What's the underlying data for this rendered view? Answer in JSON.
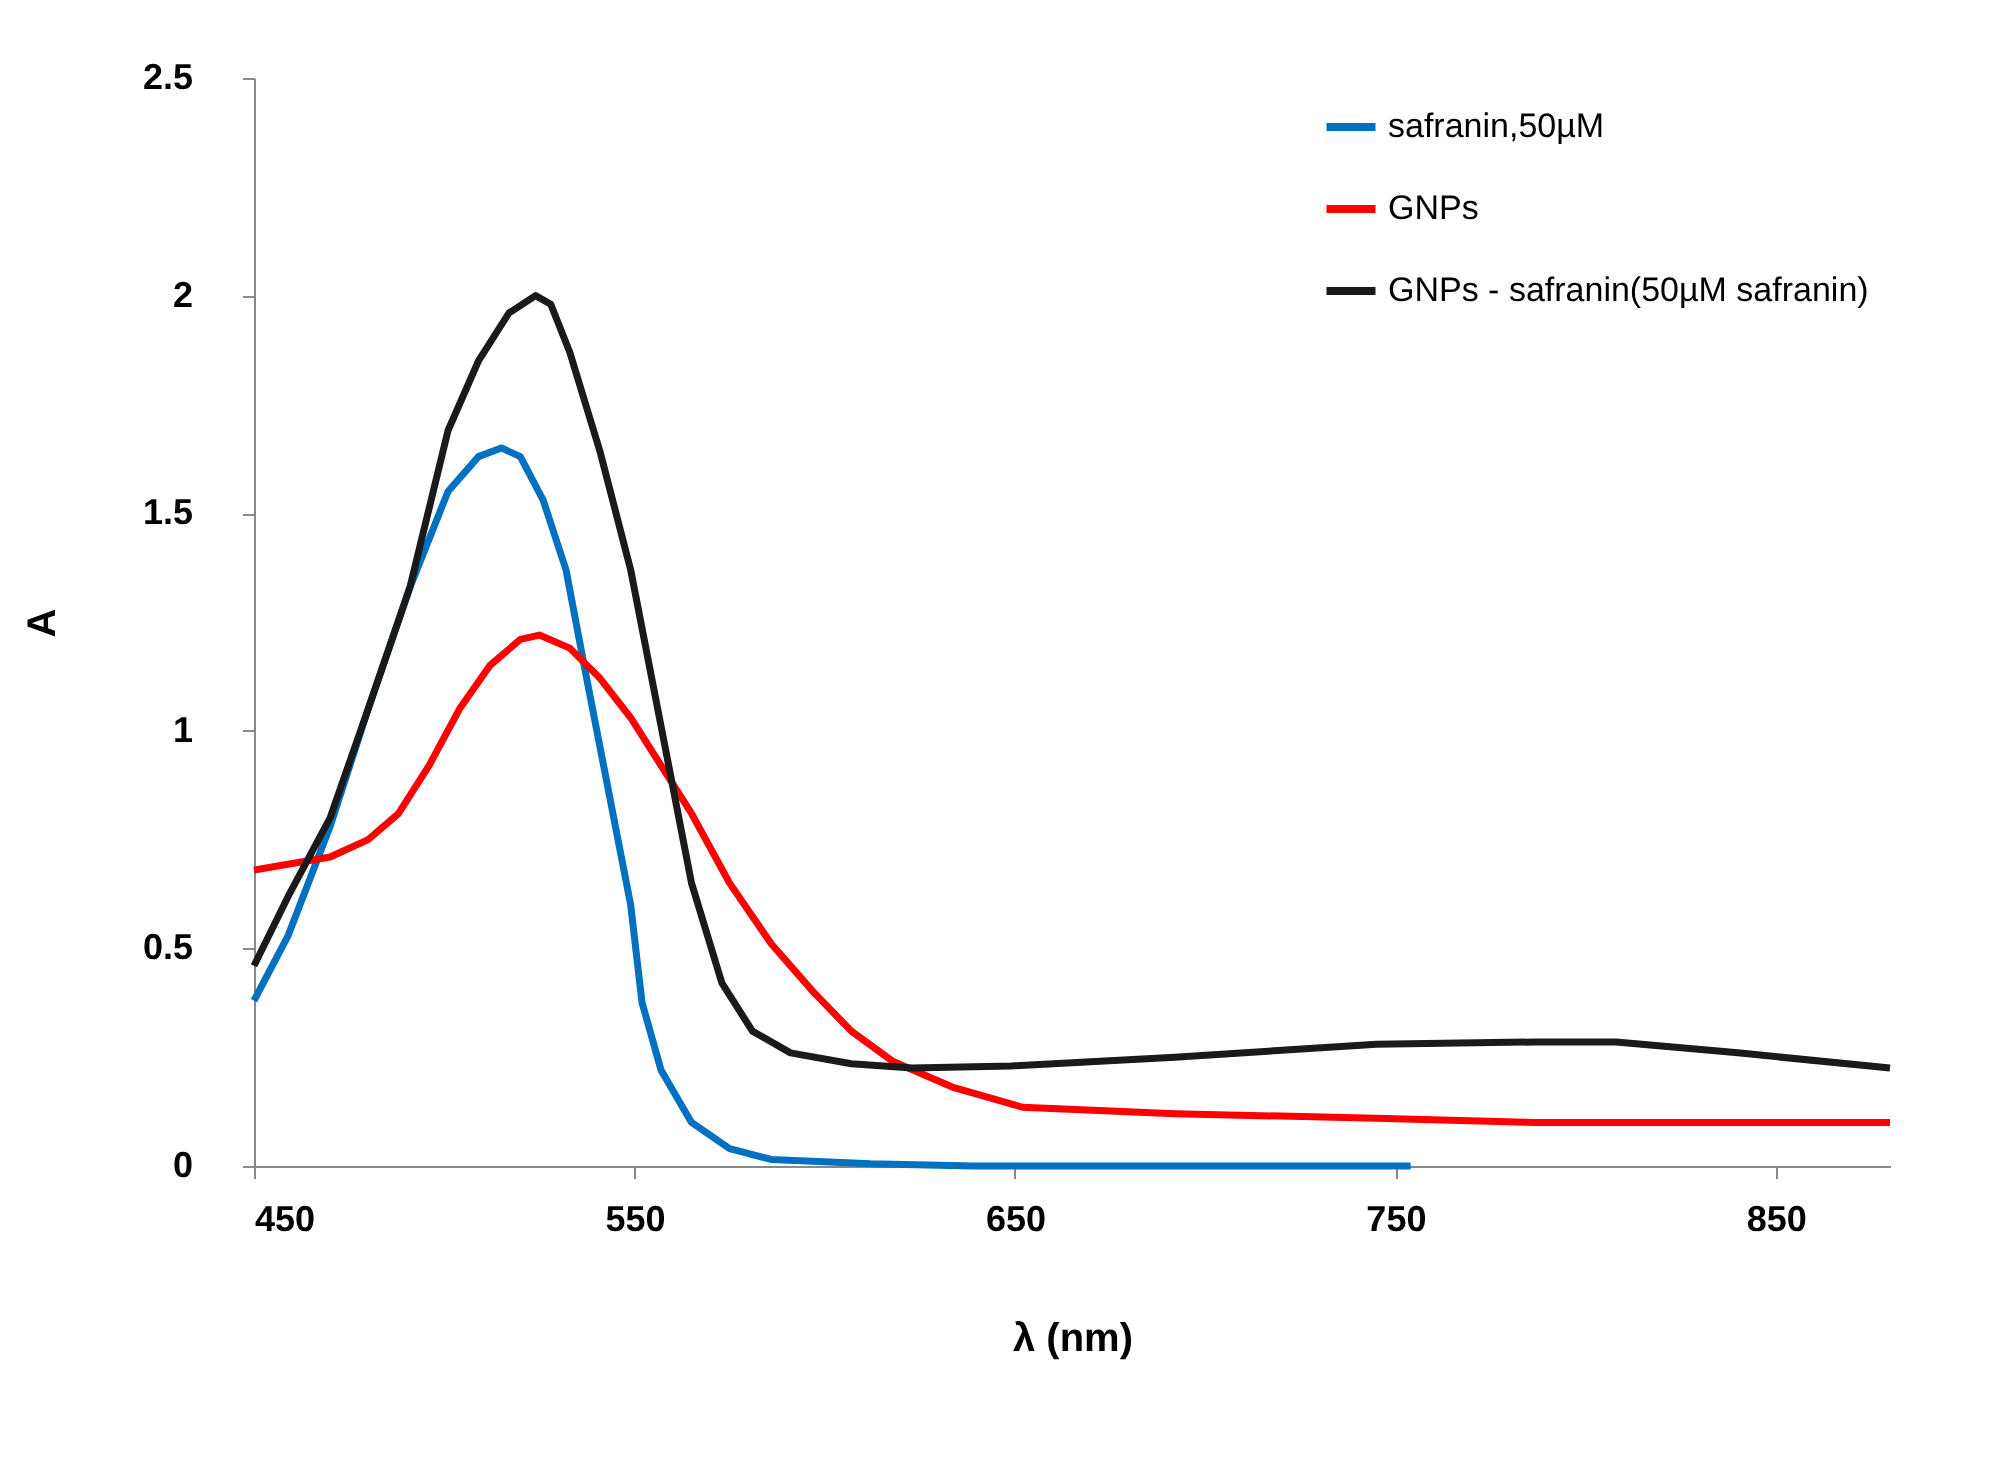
{
  "chart_data": {
    "type": "line",
    "xlabel": "λ (nm)",
    "ylabel": "A",
    "xlim": [
      450,
      880
    ],
    "ylim": [
      0,
      2.5
    ],
    "xticks": [
      450,
      550,
      650,
      750,
      850
    ],
    "yticks": [
      0,
      0.5,
      1,
      1.5,
      2,
      2.5
    ],
    "grid": false,
    "legend": "top right",
    "marker": "none",
    "line_style": "solid",
    "series": [
      {
        "name": "safranin,50µM",
        "color": "#0070c0",
        "x": [
          450,
          459,
          470,
          480,
          491,
          501,
          509,
          515,
          520,
          526,
          532,
          537,
          543,
          549,
          552,
          557,
          565,
          575,
          586,
          612,
          639,
          754
        ],
        "values": [
          0.38,
          0.53,
          0.78,
          1.05,
          1.33,
          1.55,
          1.63,
          1.65,
          1.63,
          1.53,
          1.37,
          1.14,
          0.87,
          0.6,
          0.375,
          0.22,
          0.1,
          0.04,
          0.015,
          0.005,
          0,
          0
        ]
      },
      {
        "name": "GNPs",
        "color": "#ff0000",
        "x": [
          450,
          470,
          480,
          488,
          496,
          504,
          512,
          520,
          525,
          533,
          541,
          549,
          557,
          565,
          575,
          586,
          597,
          607,
          618,
          634,
          652,
          692,
          745,
          787,
          880
        ],
        "values": [
          0.68,
          0.71,
          0.75,
          0.81,
          0.92,
          1.05,
          1.15,
          1.21,
          1.22,
          1.19,
          1.12,
          1.03,
          0.92,
          0.81,
          0.65,
          0.51,
          0.4,
          0.31,
          0.24,
          0.18,
          0.135,
          0.12,
          0.11,
          0.1,
          0.1
        ]
      },
      {
        "name": "GNPs - safranin(50µM safranin)",
        "color": "#1a1a1a",
        "x": [
          450,
          459,
          470,
          480,
          491,
          501,
          509,
          517,
          524,
          528,
          533,
          541,
          549,
          557,
          565,
          573,
          581,
          591,
          607,
          623,
          649,
          692,
          745,
          787,
          808,
          840,
          880
        ],
        "values": [
          0.46,
          0.62,
          0.8,
          1.05,
          1.33,
          1.69,
          1.85,
          1.96,
          2.0,
          1.98,
          1.87,
          1.64,
          1.37,
          1.01,
          0.65,
          0.42,
          0.31,
          0.26,
          0.235,
          0.225,
          0.23,
          0.25,
          0.28,
          0.285,
          0.285,
          0.26,
          0.225
        ]
      }
    ]
  }
}
